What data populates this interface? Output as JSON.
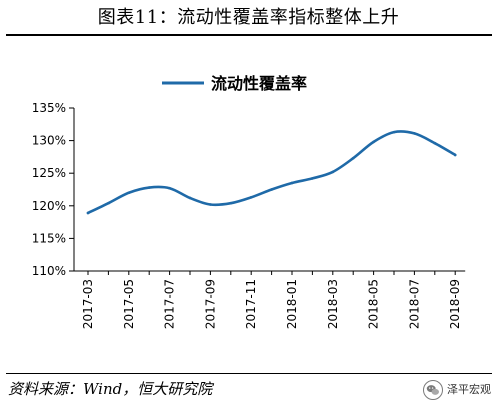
{
  "figure": {
    "title": "图表11：流动性覆盖率指标整体上升",
    "source": "资料来源：Wind，恒大研究院",
    "brand": "泽平宏观"
  },
  "colors": {
    "series": "#1f6aa8",
    "axis": "#000000"
  },
  "icons": {
    "brand": "wechat-logo-icon"
  },
  "chart_data": {
    "type": "line",
    "title": "",
    "xlabel": "",
    "ylabel": "",
    "legend": "top-center",
    "grid": false,
    "ylim": [
      110,
      135
    ],
    "y_ticks": [
      110,
      115,
      120,
      125,
      130,
      135
    ],
    "y_tick_labels": [
      "110%",
      "115%",
      "120%",
      "125%",
      "130%",
      "135%"
    ],
    "x_tick_labels": [
      "2017-03",
      "2017-05",
      "2017-07",
      "2017-09",
      "2017-11",
      "2018-01",
      "2018-03",
      "2018-05",
      "2018-07",
      "2018-09"
    ],
    "categories": [
      "2017-03",
      "2017-04",
      "2017-05",
      "2017-06",
      "2017-07",
      "2017-08",
      "2017-09",
      "2017-10",
      "2017-11",
      "2017-12",
      "2018-01",
      "2018-02",
      "2018-03",
      "2018-04",
      "2018-05",
      "2018-06",
      "2018-07",
      "2018-08",
      "2018-09"
    ],
    "series": [
      {
        "name": "流动性覆盖率",
        "values": [
          118.9,
          120.4,
          122.0,
          122.8,
          122.7,
          121.2,
          120.2,
          120.4,
          121.3,
          122.5,
          123.5,
          124.2,
          125.2,
          127.3,
          129.8,
          131.3,
          131.1,
          129.6,
          127.8
        ]
      }
    ]
  }
}
